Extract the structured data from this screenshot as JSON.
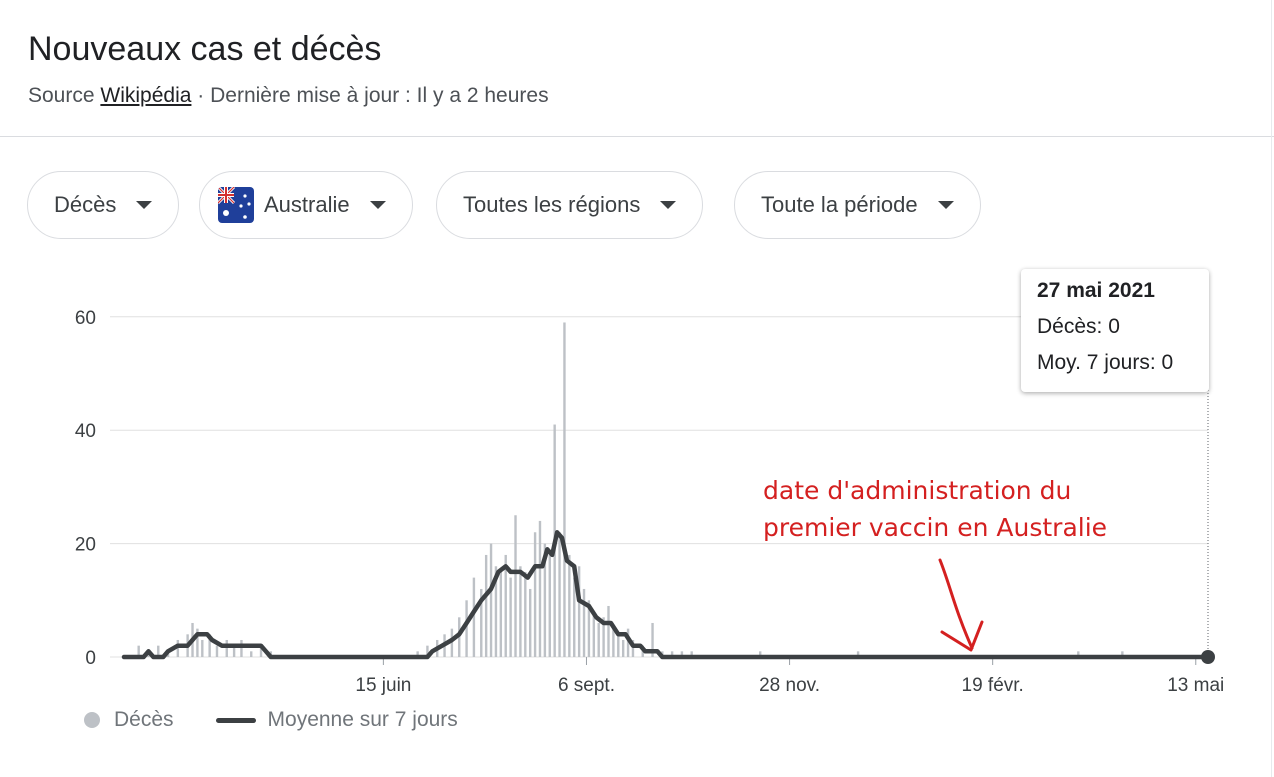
{
  "header": {
    "title": "Nouveaux cas et décès",
    "source_prefix": "Source",
    "source_link": "Wikipédia",
    "updated": "· Dernière mise à jour : Il y a 2 heures"
  },
  "filters": {
    "metric": "Décès",
    "country": "Australie",
    "region": "Toutes les régions",
    "period": "Toute la période"
  },
  "tooltip": {
    "date": "27 mai 2021",
    "deaths": "Décès: 0",
    "avg": "Moy. 7 jours: 0"
  },
  "annotation": {
    "line1": "date d'administration du",
    "line2": "premier vaccin en Australie"
  },
  "legend": {
    "deaths": "Décès",
    "average": "Moyenne sur 7 jours"
  },
  "colors": {
    "bars": "#bdc1c6",
    "average_line": "#3c4043",
    "annotation": "#d42020",
    "grid": "#e0e0e0"
  },
  "chart_data": {
    "type": "bar",
    "x_label_ticks": [
      {
        "label": "15 juin",
        "day": 106
      },
      {
        "label": "6 sept.",
        "day": 189
      },
      {
        "label": "28 nov.",
        "day": 272
      },
      {
        "label": "19 févr.",
        "day": 355
      },
      {
        "label": "13 mai",
        "day": 438
      }
    ],
    "ylim": [
      0,
      65
    ],
    "yticks": [
      0,
      20,
      40,
      60
    ],
    "grid": true,
    "legend_position": "bottom-left",
    "series": [
      {
        "name": "Décès",
        "type": "bar",
        "points": [
          [
            6,
            2
          ],
          [
            10,
            1
          ],
          [
            14,
            2
          ],
          [
            18,
            1
          ],
          [
            22,
            3
          ],
          [
            26,
            4
          ],
          [
            28,
            6
          ],
          [
            30,
            5
          ],
          [
            32,
            3
          ],
          [
            35,
            4
          ],
          [
            38,
            2
          ],
          [
            42,
            3
          ],
          [
            45,
            2
          ],
          [
            48,
            3
          ],
          [
            52,
            1
          ],
          [
            56,
            2
          ],
          [
            60,
            1
          ],
          [
            120,
            1
          ],
          [
            124,
            2
          ],
          [
            128,
            3
          ],
          [
            131,
            4
          ],
          [
            134,
            5
          ],
          [
            137,
            7
          ],
          [
            140,
            10
          ],
          [
            143,
            14
          ],
          [
            146,
            12
          ],
          [
            148,
            18
          ],
          [
            150,
            20
          ],
          [
            152,
            16
          ],
          [
            154,
            15
          ],
          [
            156,
            18
          ],
          [
            158,
            14
          ],
          [
            160,
            25
          ],
          [
            162,
            16
          ],
          [
            164,
            15
          ],
          [
            166,
            12
          ],
          [
            168,
            22
          ],
          [
            170,
            24
          ],
          [
            172,
            20
          ],
          [
            174,
            18
          ],
          [
            176,
            41
          ],
          [
            178,
            22
          ],
          [
            180,
            59
          ],
          [
            182,
            18
          ],
          [
            184,
            14
          ],
          [
            186,
            16
          ],
          [
            188,
            12
          ],
          [
            190,
            10
          ],
          [
            192,
            8
          ],
          [
            194,
            6
          ],
          [
            196,
            7
          ],
          [
            198,
            9
          ],
          [
            200,
            5
          ],
          [
            202,
            4
          ],
          [
            204,
            3
          ],
          [
            206,
            5
          ],
          [
            208,
            3
          ],
          [
            212,
            2
          ],
          [
            216,
            6
          ],
          [
            220,
            1
          ],
          [
            224,
            1
          ],
          [
            228,
            1
          ],
          [
            232,
            1
          ],
          [
            260,
            1
          ],
          [
            300,
            1
          ],
          [
            390,
            1
          ],
          [
            408,
            1
          ]
        ]
      },
      {
        "name": "Moyenne sur 7 jours",
        "type": "line",
        "points": [
          [
            0,
            0
          ],
          [
            8,
            0
          ],
          [
            10,
            1
          ],
          [
            12,
            0
          ],
          [
            16,
            0
          ],
          [
            18,
            1
          ],
          [
            22,
            2
          ],
          [
            26,
            2
          ],
          [
            28,
            3
          ],
          [
            30,
            4
          ],
          [
            34,
            4
          ],
          [
            36,
            3
          ],
          [
            40,
            2
          ],
          [
            44,
            2
          ],
          [
            50,
            2
          ],
          [
            56,
            2
          ],
          [
            58,
            1
          ],
          [
            60,
            0
          ],
          [
            78,
            0
          ],
          [
            124,
            0
          ],
          [
            126,
            1
          ],
          [
            130,
            2
          ],
          [
            134,
            3
          ],
          [
            137,
            4
          ],
          [
            140,
            6
          ],
          [
            143,
            8
          ],
          [
            146,
            10
          ],
          [
            150,
            12
          ],
          [
            153,
            15
          ],
          [
            156,
            16
          ],
          [
            158,
            15
          ],
          [
            162,
            15
          ],
          [
            165,
            14
          ],
          [
            168,
            16
          ],
          [
            171,
            16
          ],
          [
            173,
            19
          ],
          [
            175,
            18
          ],
          [
            177,
            22
          ],
          [
            179,
            21
          ],
          [
            181,
            17
          ],
          [
            184,
            16
          ],
          [
            186,
            10
          ],
          [
            190,
            9
          ],
          [
            193,
            7
          ],
          [
            196,
            6
          ],
          [
            199,
            6
          ],
          [
            202,
            4
          ],
          [
            205,
            4
          ],
          [
            208,
            2
          ],
          [
            211,
            2
          ],
          [
            213,
            1
          ],
          [
            218,
            1
          ],
          [
            220,
            0
          ],
          [
            443,
            0
          ]
        ]
      }
    ]
  }
}
